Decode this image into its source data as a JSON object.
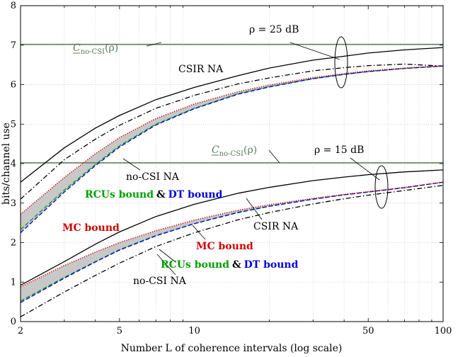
{
  "chart_data": {
    "type": "line",
    "xlabel": "Number L of coherence intervals (log scale)",
    "ylabel": "bits/channel use",
    "xscale": "log",
    "xlim": [
      2,
      100
    ],
    "ylim": [
      0,
      8
    ],
    "grid": "dotted",
    "xticks": [
      {
        "value": 2,
        "label": "2"
      },
      {
        "value": 5,
        "label": "5"
      },
      {
        "value": 10,
        "label": "10"
      },
      {
        "value": 50,
        "label": "50"
      },
      {
        "value": 100,
        "label": "100"
      }
    ],
    "yticks": [
      {
        "value": 0,
        "label": "0"
      },
      {
        "value": 1,
        "label": "1"
      },
      {
        "value": 2,
        "label": "2"
      },
      {
        "value": 3,
        "label": "3"
      },
      {
        "value": 4,
        "label": "4"
      },
      {
        "value": 5,
        "label": "5"
      },
      {
        "value": 6,
        "label": "6"
      },
      {
        "value": 7,
        "label": "7"
      },
      {
        "value": 8,
        "label": "8"
      }
    ],
    "colors": {
      "black": "#000000",
      "red": "#d00000",
      "green": "#00a000",
      "blue": "#0000e0",
      "gray_line": "#5a7a5a",
      "band": "#c8c8c8"
    },
    "x": [
      2,
      3,
      4,
      5,
      7,
      10,
      15,
      20,
      30,
      40,
      50,
      70,
      100
    ],
    "snr_groups": [
      {
        "label": "ρ = 25 dB",
        "capacity_level": 7.02,
        "series": [
          {
            "key": "csir_na",
            "style": "solid",
            "color": "#000000",
            "values": [
              3.53,
              4.4,
              4.9,
              5.22,
              5.62,
              5.93,
              6.23,
              6.42,
              6.62,
              6.72,
              6.8,
              6.88,
              6.94
            ]
          },
          {
            "key": "nocsi_na",
            "style": "dashdot",
            "color": "#000000",
            "values": [
              3.1,
              4.1,
              4.62,
              4.97,
              5.4,
              5.73,
              6.02,
              6.17,
              6.35,
              6.43,
              6.48,
              6.52,
              6.47
            ]
          },
          {
            "key": "mc_bound",
            "style": "dotted",
            "color": "#d00000",
            "values": [
              2.72,
              3.65,
              4.25,
              4.66,
              5.14,
              5.51,
              5.82,
              5.99,
              6.18,
              6.28,
              6.35,
              6.42,
              6.48
            ]
          },
          {
            "key": "rcus_bound",
            "style": "dashed",
            "color": "#00a000",
            "values": [
              2.33,
              3.33,
              3.98,
              4.45,
              5.0,
              5.4,
              5.77,
              5.95,
              6.15,
              6.26,
              6.33,
              6.41,
              6.47
            ]
          },
          {
            "key": "dt_bound",
            "style": "dashed",
            "color": "#0000e0",
            "values": [
              2.25,
              3.28,
              3.95,
              4.42,
              4.98,
              5.39,
              5.76,
              5.94,
              6.15,
              6.26,
              6.33,
              6.41,
              6.47
            ]
          }
        ]
      },
      {
        "label": "ρ = 15 dB",
        "capacity_level": 4.02,
        "series": [
          {
            "key": "csir_na",
            "style": "solid",
            "color": "#000000",
            "values": [
              0.92,
              1.52,
              1.96,
              2.27,
              2.66,
              2.97,
              3.25,
              3.4,
              3.57,
              3.66,
              3.72,
              3.79,
              3.84
            ]
          },
          {
            "key": "nocsi_na",
            "style": "dashdot",
            "color": "#000000",
            "values": [
              0.12,
              0.75,
              1.17,
              1.48,
              1.9,
              2.25,
              2.58,
              2.76,
              2.98,
              3.11,
              3.2,
              3.32,
              3.45
            ]
          },
          {
            "key": "mc_bound",
            "style": "dotted",
            "color": "#d00000",
            "values": [
              0.88,
              1.42,
              1.76,
              2.0,
              2.3,
              2.57,
              2.82,
              2.96,
              3.12,
              3.22,
              3.29,
              3.4,
              3.53
            ]
          },
          {
            "key": "rcus_bound",
            "style": "dashed",
            "color": "#00a000",
            "values": [
              0.52,
              1.12,
              1.52,
              1.82,
              2.18,
              2.48,
              2.77,
              2.92,
              3.1,
              3.21,
              3.28,
              3.39,
              3.53
            ]
          },
          {
            "key": "dt_bound",
            "style": "dashed",
            "color": "#0000e0",
            "values": [
              0.48,
              1.1,
              1.51,
              1.81,
              2.17,
              2.48,
              2.76,
              2.92,
              3.1,
              3.21,
              3.28,
              3.39,
              3.53
            ]
          }
        ]
      }
    ],
    "annotations": {
      "rho25": {
        "text": "ρ = 25 dB"
      },
      "rho15": {
        "text": "ρ = 15 dB"
      },
      "cap_top": {
        "symbol": "C",
        "sub": "no-CSI",
        "arg": "(ρ)"
      },
      "cap_bottom": {
        "symbol": "C",
        "sub": "no-CSI",
        "arg": "(ρ)"
      },
      "csir_na_top": {
        "text": "CSIR NA"
      },
      "nocsi_na_top": {
        "text": "no-CSI NA"
      },
      "rcus_top": {
        "text": "RCUs bound"
      },
      "amp_top": {
        "text": "&"
      },
      "dt_top": {
        "text": "DT bound"
      },
      "mc_top": {
        "text": "MC bound"
      },
      "csir_na_bottom": {
        "text": "CSIR NA"
      },
      "mc_bottom": {
        "text": "MC bound"
      },
      "rcus_bottom": {
        "text": "RCUs bound"
      },
      "amp_bottom": {
        "text": "&"
      },
      "dt_bottom": {
        "text": "DT bound"
      },
      "nocsi_na_bottom": {
        "text": "no-CSI NA"
      }
    }
  }
}
